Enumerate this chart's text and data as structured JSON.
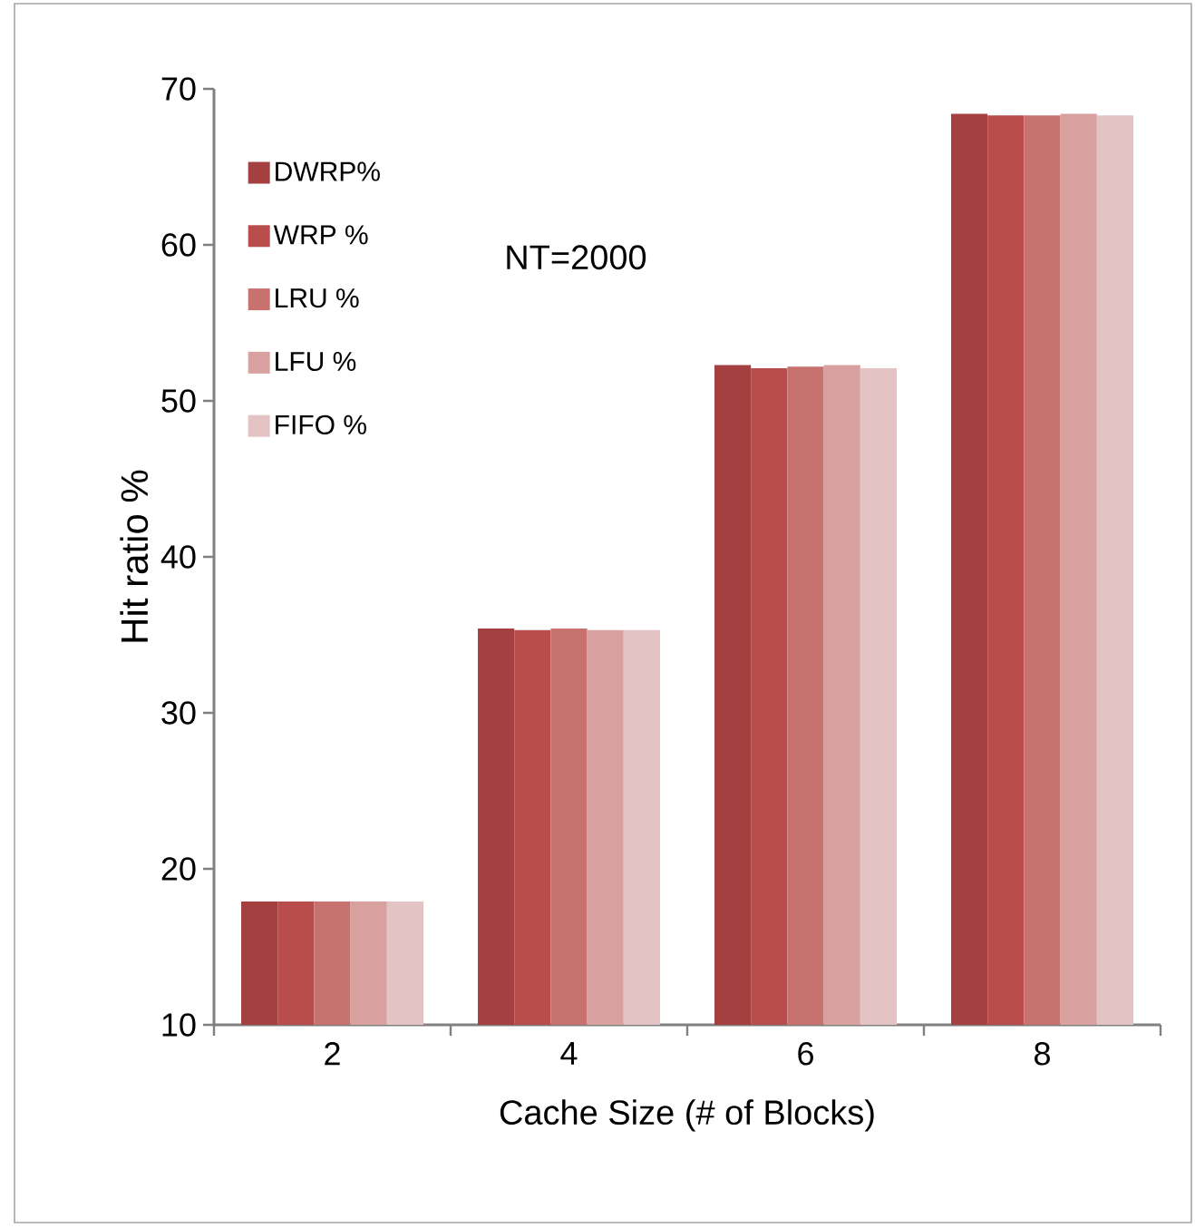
{
  "chart_data": {
    "type": "bar",
    "xlabel": "Cache Size (# of Blocks)",
    "ylabel": "Hit ratio %",
    "categories": [
      "2",
      "4",
      "6",
      "8"
    ],
    "series": [
      {
        "name": "DWRP%",
        "color": "#a54040",
        "values": [
          17.9,
          35.4,
          52.3,
          68.4
        ]
      },
      {
        "name": "WRP %",
        "color": "#b84d4b",
        "values": [
          17.9,
          35.3,
          52.1,
          68.3
        ]
      },
      {
        "name": "LRU %",
        "color": "#c87270",
        "values": [
          17.9,
          35.4,
          52.2,
          68.3
        ]
      },
      {
        "name": "LFU %",
        "color": "#d9a0a0",
        "values": [
          17.9,
          35.3,
          52.3,
          68.4
        ]
      },
      {
        "name": "FIFO %",
        "color": "#e3c3c4",
        "values": [
          17.9,
          35.3,
          52.1,
          68.3
        ]
      }
    ],
    "ylim": [
      10,
      70
    ],
    "yticks": [
      10,
      20,
      30,
      40,
      50,
      60,
      70
    ],
    "annotations": [
      "NT=2000"
    ],
    "grid": false,
    "legend": "top left"
  }
}
